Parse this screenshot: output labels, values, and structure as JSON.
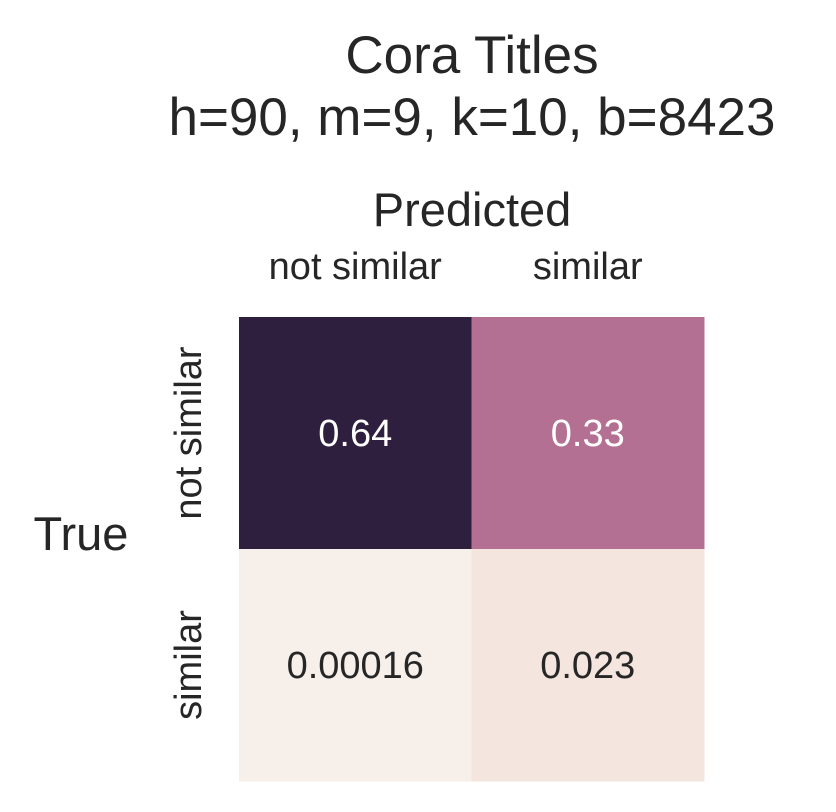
{
  "chart_data": {
    "type": "heatmap",
    "title_lines": [
      "Cora Titles",
      "h=90, m=9, k=10, b=8423"
    ],
    "xlabel": "Predicted",
    "ylabel": "True",
    "x_categories": [
      "not similar",
      "similar"
    ],
    "y_categories": [
      "not similar",
      "similar"
    ],
    "values": [
      [
        0.64,
        0.33
      ],
      [
        0.00016,
        0.023
      ]
    ],
    "annotations": [
      [
        "0.64",
        "0.33"
      ],
      [
        "0.00016",
        "0.023"
      ]
    ],
    "cell_colors": [
      [
        "#2e1f3e",
        "#b47092"
      ],
      [
        "#f7efea",
        "#f4e5de"
      ]
    ],
    "annotation_colors": [
      [
        "#ffffff",
        "#ffffff"
      ],
      [
        "#262626",
        "#262626"
      ]
    ],
    "colorbar": false,
    "grid": false
  }
}
